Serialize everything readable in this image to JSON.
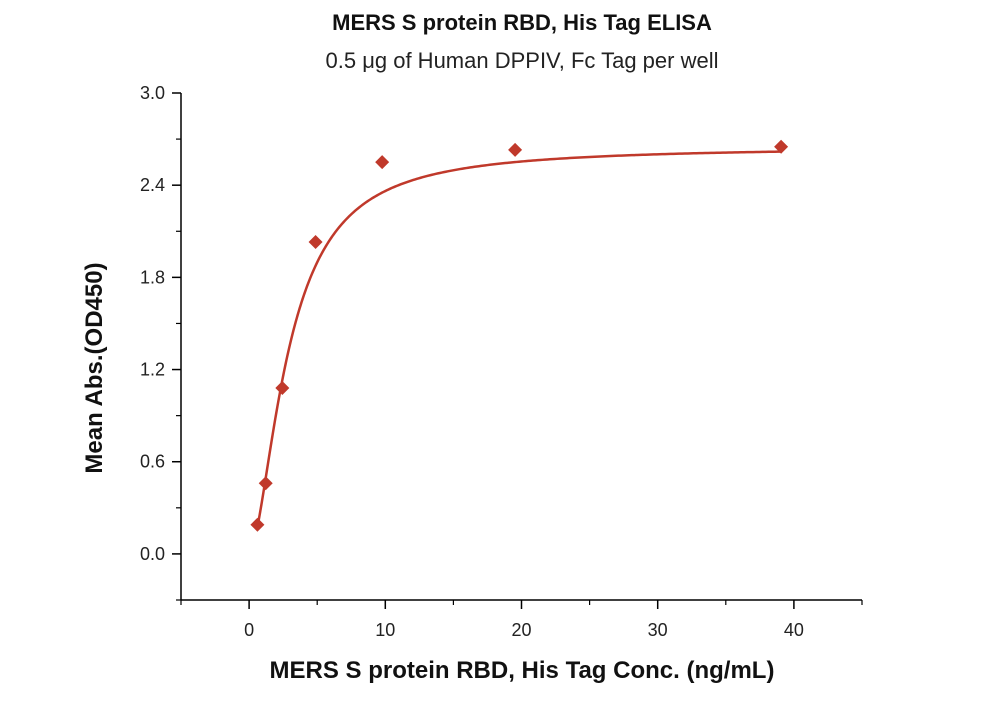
{
  "chart_data": {
    "type": "scatter",
    "title": "MERS S protein RBD, His Tag ELISA",
    "subtitle": "0.5 μg of Human DPPIV, Fc Tag per well",
    "xlabel": "MERS S protein RBD, His Tag Conc. (ng/mL)",
    "ylabel": "Mean Abs.(OD450)",
    "xlim": [
      -5,
      45
    ],
    "ylim": [
      -0.3,
      3.0
    ],
    "xticks": [
      0,
      10,
      20,
      30,
      40
    ],
    "yticks": [
      0.0,
      0.6,
      1.2,
      1.8,
      2.4,
      3.0
    ],
    "xtick_labels": [
      "0",
      "10",
      "20",
      "30",
      "40"
    ],
    "ytick_labels": [
      "0.0",
      "0.6",
      "1.2",
      "1.8",
      "2.4",
      "3.0"
    ],
    "grid": false,
    "legend": "none",
    "series": [
      {
        "marker": "diamond",
        "color": "#c0392b",
        "x": [
          0.61,
          1.22,
          2.44,
          4.88,
          9.77,
          19.53,
          39.06
        ],
        "y": [
          0.19,
          0.46,
          1.08,
          2.03,
          2.55,
          2.63,
          2.65
        ]
      }
    ],
    "fit_curve": {
      "color": "#c0392b",
      "model": "4PL",
      "bottom": 0.0,
      "top": 2.65,
      "ec50": 2.9,
      "hill": 1.7
    }
  }
}
